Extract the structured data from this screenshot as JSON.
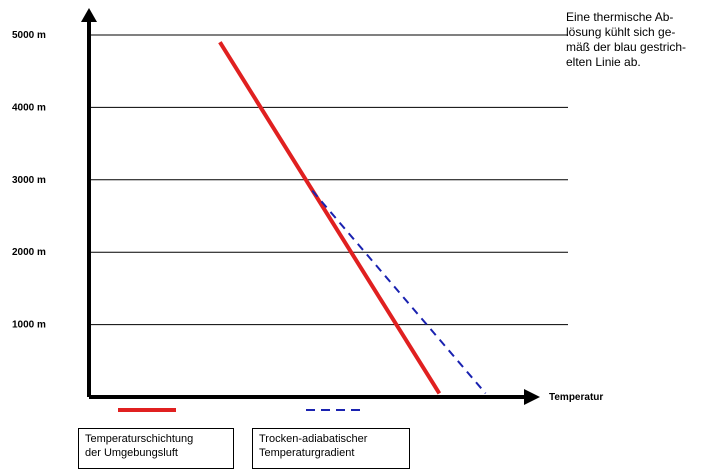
{
  "chart_data": {
    "type": "line",
    "y_tick_labels": [
      "5000 m",
      "4000 m",
      "3000 m",
      "2000 m",
      "1000 m"
    ],
    "y_ticks": [
      5000,
      4000,
      3000,
      2000,
      1000
    ],
    "ylim": [
      0,
      5000
    ],
    "xlabel": "Temperatur",
    "grid": true,
    "series": [
      {
        "name": "Temperaturschichtung der Umgebungsluft",
        "style": "solid",
        "color": "#e02020",
        "x": [
          0.34,
          0.91
        ],
        "y": [
          4900,
          50
        ]
      },
      {
        "name": "Trocken-adiabatischer Temperaturgradient",
        "style": "dashed",
        "color": "#1a22b0",
        "x": [
          0.58,
          1.03
        ],
        "y": [
          2850,
          50
        ]
      }
    ]
  },
  "annotation": {
    "lines": [
      "Eine thermische Ab-",
      "lösung kühlt sich ge-",
      "mäß der blau gestrich-",
      "elten Linie ab."
    ]
  },
  "legend": [
    {
      "lines": [
        "Temperaturschichtung",
        "der Umgebungsluft"
      ],
      "color": "#e02020",
      "style": "solid"
    },
    {
      "lines": [
        "Trocken-adiabatischer",
        "Temperaturgradient"
      ],
      "color": "#1a22b0",
      "style": "dashed"
    }
  ]
}
